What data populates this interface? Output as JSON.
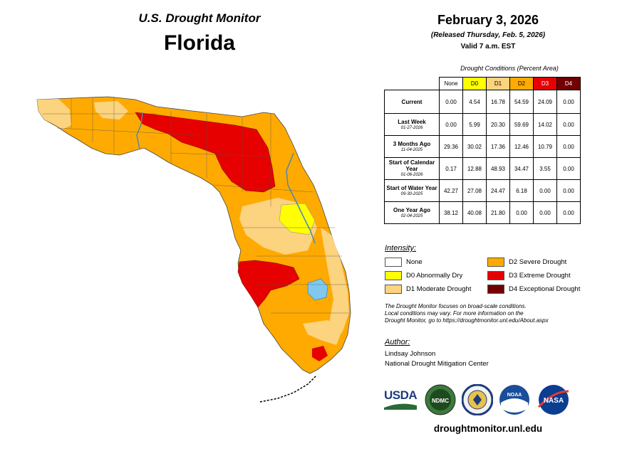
{
  "header": {
    "title": "U.S. Drought Monitor",
    "state": "Florida"
  },
  "info": {
    "date": "February 3, 2026",
    "released": "(Released Thursday, Feb. 5, 2026)",
    "valid": "Valid 7 a.m. EST"
  },
  "table": {
    "caption": "Drought Conditions (Percent Area)",
    "columns": [
      "None",
      "D0",
      "D1",
      "D2",
      "D3",
      "D4"
    ],
    "rows": [
      {
        "label": "Current",
        "date": "",
        "values": [
          "0.00",
          "4.54",
          "16.78",
          "54.59",
          "24.09",
          "0.00"
        ]
      },
      {
        "label": "Last Week",
        "date": "01-27-2026",
        "values": [
          "0.00",
          "5.99",
          "20.30",
          "59.69",
          "14.02",
          "0.00"
        ]
      },
      {
        "label": "3 Months Ago",
        "date": "11-04-2025",
        "values": [
          "29.36",
          "30.02",
          "17.36",
          "12.46",
          "10.79",
          "0.00"
        ]
      },
      {
        "label": "Start of Calendar Year",
        "date": "01-06-2026",
        "values": [
          "0.17",
          "12.88",
          "48.93",
          "34.47",
          "3.55",
          "0.00"
        ]
      },
      {
        "label": "Start of Water Year",
        "date": "09-30-2025",
        "values": [
          "42.27",
          "27.08",
          "24.47",
          "6.18",
          "0.00",
          "0.00"
        ]
      },
      {
        "label": "One Year Ago",
        "date": "02-04-2025",
        "values": [
          "38.12",
          "40.08",
          "21.80",
          "0.00",
          "0.00",
          "0.00"
        ]
      }
    ]
  },
  "legend": {
    "heading": "Intensity:",
    "items": [
      {
        "label": "None",
        "color": "#ffffff"
      },
      {
        "label": "D0 Abnormally Dry",
        "color": "#ffff00"
      },
      {
        "label": "D1 Moderate Drought",
        "color": "#fcd37f"
      },
      {
        "label": "D2 Severe Drought",
        "color": "#ffaa00"
      },
      {
        "label": "D3 Extreme Drought",
        "color": "#e60000"
      },
      {
        "label": "D4 Exceptional Drought",
        "color": "#730000"
      }
    ]
  },
  "note": {
    "line1": "The Drought Monitor focuses on broad-scale conditions.",
    "line2": "Local conditions may vary. For more information on the",
    "line3": "Drought Monitor, go to https://droughtmonitor.unl.edu/About.aspx"
  },
  "author": {
    "heading": "Author:",
    "name": "Lindsay Johnson",
    "org": "National Drought Mitigation Center"
  },
  "logos": {
    "usda": "USDA",
    "ndmc": "NDMC",
    "noaa": "NOAA",
    "nasa": "NASA"
  },
  "footer": {
    "url": "droughtmonitor.unl.edu"
  }
}
